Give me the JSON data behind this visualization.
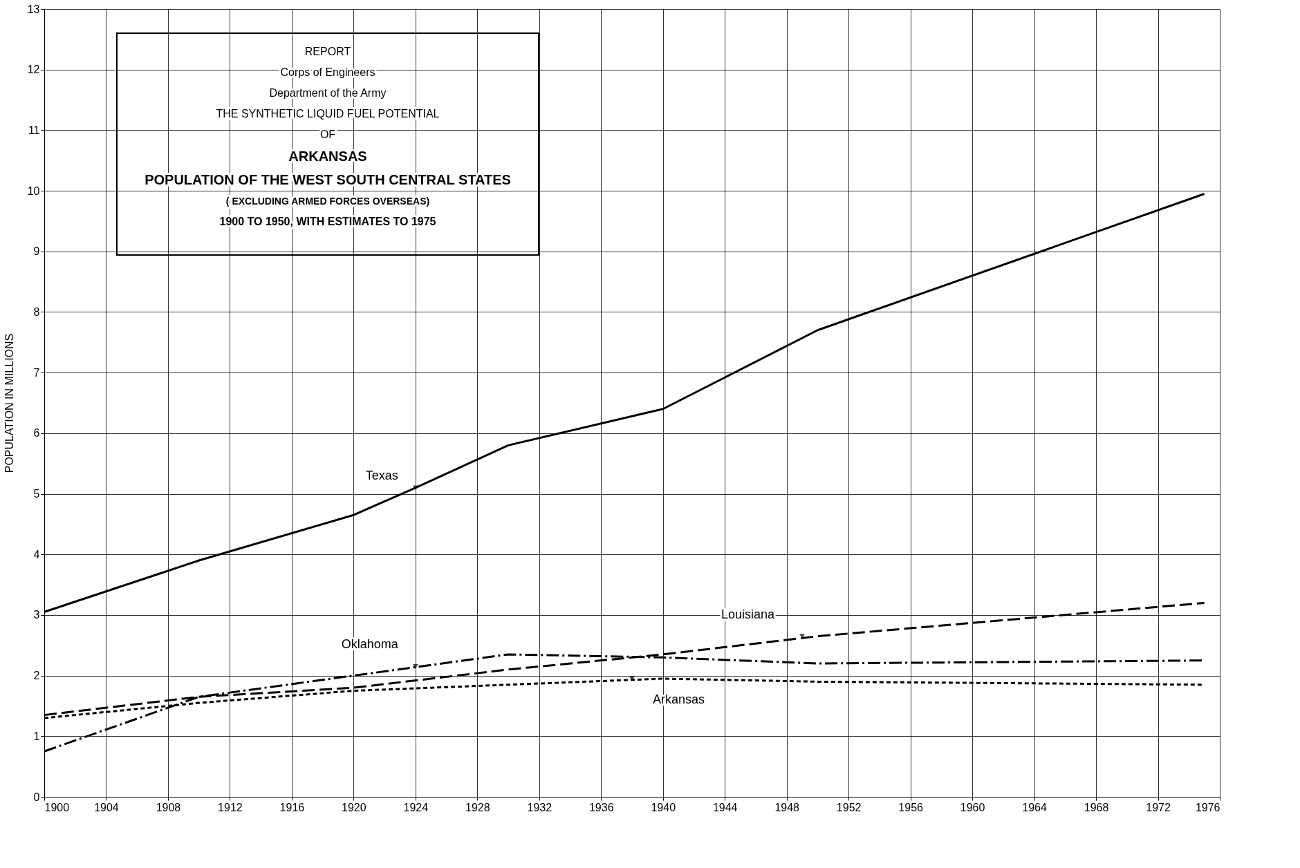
{
  "chart_data": {
    "type": "line",
    "title": "POPULATION OF THE WEST SOUTH CENTRAL STATES",
    "subtitle": "( EXCLUDING ARMED FORCES OVERSEAS)",
    "ylabel": "POPULATION IN MILLIONS",
    "xlim": [
      1900,
      1976
    ],
    "xticks": [
      1900,
      1904,
      1908,
      1912,
      1916,
      1920,
      1924,
      1928,
      1932,
      1936,
      1940,
      1944,
      1948,
      1952,
      1956,
      1960,
      1964,
      1968,
      1972,
      1976
    ],
    "ylim": [
      0,
      13
    ],
    "yticks": [
      0,
      1,
      2,
      3,
      4,
      5,
      6,
      7,
      8,
      9,
      10,
      11,
      12,
      13
    ],
    "grid": true,
    "series": [
      {
        "color": "#000000",
        "line_style": "solid",
        "x": [
          1900,
          1910,
          1920,
          1924,
          1930,
          1940,
          1950,
          1975
        ],
        "values": [
          3.05,
          3.9,
          4.65,
          5.1,
          5.8,
          6.4,
          7.7,
          9.95
        ]
      },
      {
        "color": "#000000",
        "line_style": "dashdot",
        "x": [
          1900,
          1910,
          1920,
          1930,
          1940,
          1950,
          1975
        ],
        "values": [
          0.75,
          1.65,
          2.0,
          2.35,
          2.3,
          2.2,
          2.25
        ]
      },
      {
        "color": "#000000",
        "line_style": "dashed",
        "x": [
          1900,
          1910,
          1920,
          1930,
          1940,
          1950,
          1975
        ],
        "values": [
          1.35,
          1.65,
          1.8,
          2.1,
          2.35,
          2.65,
          3.2
        ]
      },
      {
        "color": "#000000",
        "line_style": "dotted",
        "x": [
          1900,
          1910,
          1920,
          1930,
          1940,
          1950,
          1975
        ],
        "values": [
          1.3,
          1.55,
          1.75,
          1.85,
          1.95,
          1.9,
          1.85
        ]
      }
    ],
    "annotations": [
      "REPORT",
      "Corps of Engineers",
      "Department of the Army",
      "THE SYNTHETIC LIQUID FUEL POTENTIAL",
      "OF",
      "ARKANSAS",
      "1900 TO 1950, WITH ESTIMATES TO 1975",
      {
        "text": "Texas",
        "x": 1924,
        "y": 5.1
      },
      {
        "text": "Oklahoma",
        "x": 1924,
        "y": 2.15
      },
      {
        "text": "Louisiana",
        "x": 1949,
        "y": 2.65
      },
      {
        "text": "Arkansas",
        "x": 1938,
        "y": 1.95
      }
    ]
  }
}
